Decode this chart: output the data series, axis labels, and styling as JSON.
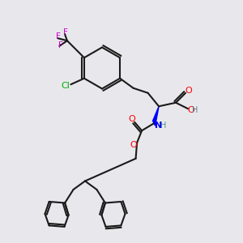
{
  "bg_color": "#e8e8ec",
  "bond_color": "#1a1a1a",
  "bond_width": 1.5,
  "colors": {
    "C": "#1a1a1a",
    "O": "#ff0000",
    "N": "#0000ff",
    "F": "#cc00cc",
    "Cl": "#00aa00",
    "H": "#558899"
  },
  "font_size": 7.5
}
